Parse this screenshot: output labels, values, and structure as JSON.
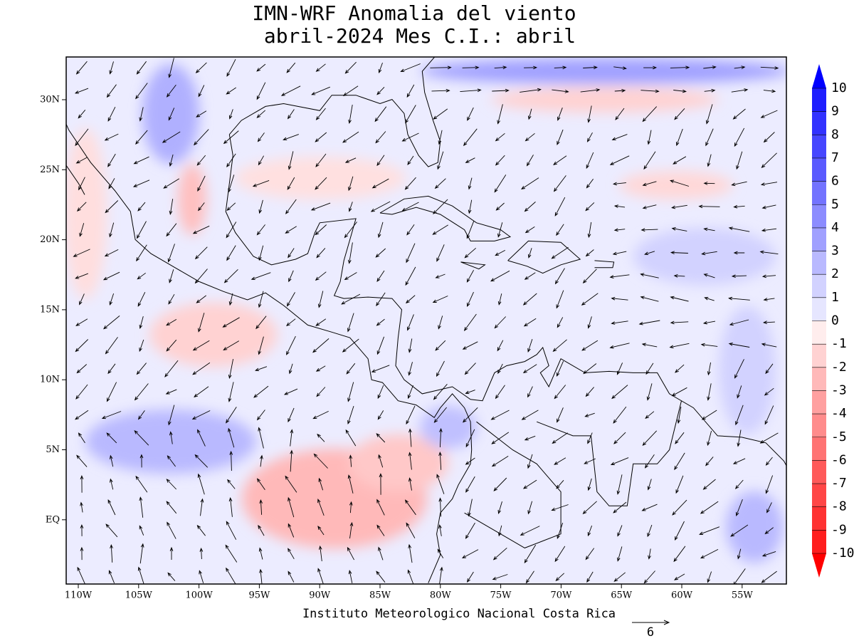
{
  "header": {
    "title_line1": "IMN-WRF Anomalia del viento",
    "title_line2": "abril-2024 Mes C.I.: abril"
  },
  "map": {
    "lon_labels": [
      "110W",
      "105W",
      "100W",
      "95W",
      "90W",
      "85W",
      "80W",
      "75W",
      "70W",
      "65W",
      "60W",
      "55W"
    ],
    "lat_labels": [
      "30N",
      "25N",
      "20N",
      "15N",
      "10N",
      "5N",
      "EQ"
    ]
  },
  "colorbar": {
    "levels": [
      10,
      9,
      8,
      7,
      6,
      5,
      4,
      3,
      2,
      1,
      0,
      -1,
      -2,
      -3,
      -4,
      -5,
      -6,
      -7,
      -8,
      -9,
      -10
    ],
    "colors": [
      "#0000ff",
      "#1e1eff",
      "#3232ff",
      "#4646ff",
      "#5a5aff",
      "#7373ff",
      "#8c8cff",
      "#a0a0ff",
      "#b9b9ff",
      "#d2d2ff",
      "#e6e6ff",
      "#ffeded",
      "#ffd2d2",
      "#ffb9b9",
      "#ffa0a0",
      "#ff8c8c",
      "#ff7373",
      "#ff5a5a",
      "#ff4646",
      "#ff3232",
      "#ff1e1e",
      "#ff0000"
    ]
  },
  "footer": {
    "credit": "Instituto Meteorologico Nacional Costa Rica",
    "vector_scale": "6"
  }
}
